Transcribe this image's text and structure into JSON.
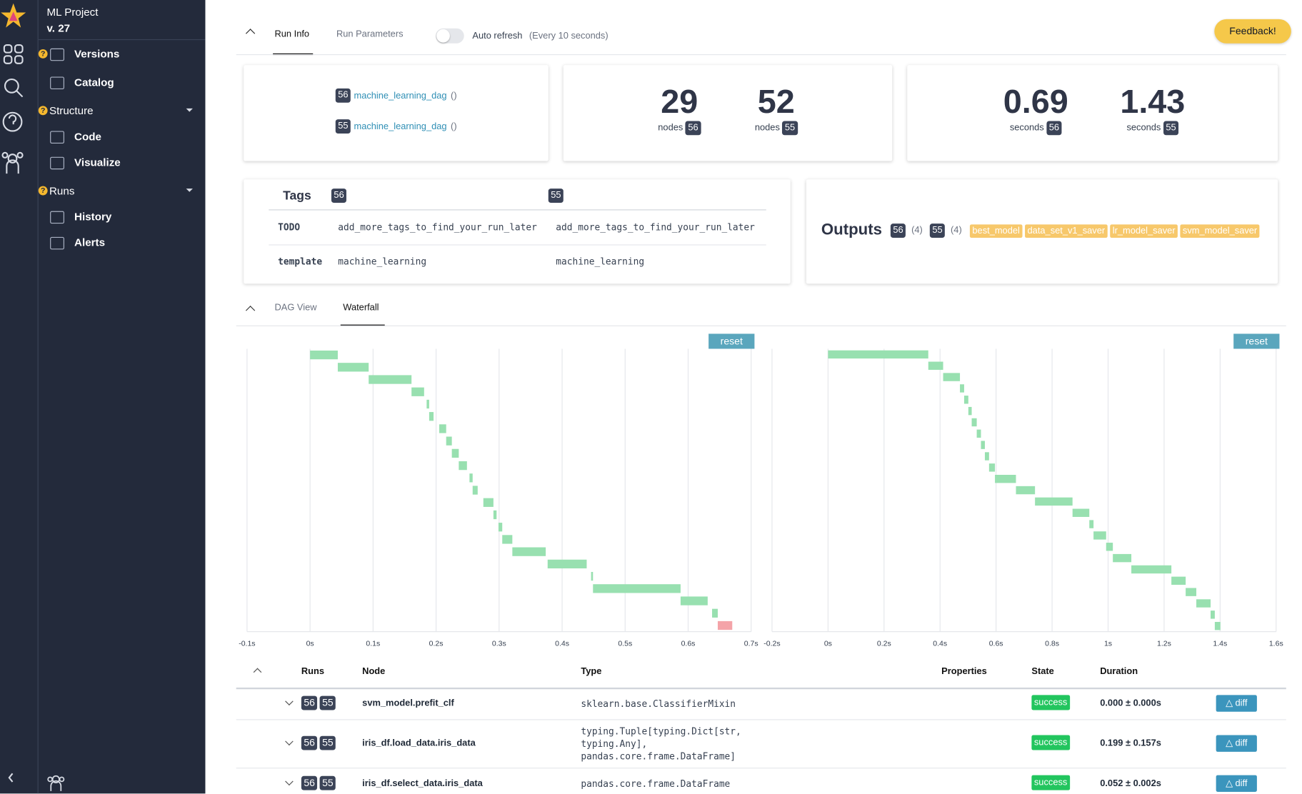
{
  "sidebar": {
    "project": "ML Project",
    "version": "v. 27",
    "items": [
      {
        "label": "Versions",
        "help": true
      },
      {
        "label": "Catalog"
      },
      {
        "label": "Structure",
        "section": true,
        "help": true
      },
      {
        "label": "Code"
      },
      {
        "label": "Visualize"
      },
      {
        "label": "Runs",
        "section": true,
        "help": true
      },
      {
        "label": "History"
      },
      {
        "label": "Alerts"
      }
    ]
  },
  "header": {
    "tabs": [
      "Run Info",
      "Run Parameters"
    ],
    "active_tab": 0,
    "auto_refresh": "Auto refresh",
    "auto_refresh_note": "(Every 10 seconds)",
    "feedback": "Feedback!"
  },
  "runs": [
    {
      "id": "56",
      "dag": "machine_learning_dag",
      "args": "()"
    },
    {
      "id": "55",
      "dag": "machine_learning_dag",
      "args": "()"
    }
  ],
  "stats": [
    {
      "label": "nodes",
      "values": [
        {
          "run": "56",
          "value": 29
        },
        {
          "run": "55",
          "value": 52
        }
      ]
    },
    {
      "label": "seconds",
      "values": [
        {
          "run": "56",
          "value": 0.69
        },
        {
          "run": "55",
          "value": 1.43
        }
      ]
    }
  ],
  "tags": {
    "title": "Tags",
    "runs": [
      "56",
      "55"
    ],
    "rows": [
      {
        "key": "TODO",
        "values": [
          "add_more_tags_to_find_your_run_later",
          "add_more_tags_to_find_your_run_later"
        ]
      },
      {
        "key": "template",
        "values": [
          "machine_learning",
          "machine_learning"
        ]
      }
    ]
  },
  "outputs": {
    "title": "Outputs",
    "runs": [
      {
        "id": "56",
        "count": "(4)"
      },
      {
        "id": "55",
        "count": "(4)"
      }
    ],
    "items": [
      "best_model",
      "data_set_v1_saver",
      "lr_model_saver",
      "svm_model_saver"
    ]
  },
  "view_tabs": {
    "tabs": [
      "DAG View",
      "Waterfall"
    ],
    "active_tab": 1
  },
  "waterfall_charts": [
    {
      "type": "waterfall",
      "reset": "reset",
      "bar_color": "#98e0b0",
      "xlim": [
        -0.1,
        0.7
      ],
      "xticks": [
        {
          "value": -0.1,
          "label": "-0.1s"
        },
        {
          "value": 0,
          "label": "0s"
        },
        {
          "value": 0.1,
          "label": "0.1s"
        },
        {
          "value": 0.2,
          "label": "0.2s"
        },
        {
          "value": 0.3,
          "label": "0.3s"
        },
        {
          "value": 0.4,
          "label": "0.4s"
        },
        {
          "value": 0.5,
          "label": "0.5s"
        },
        {
          "value": 0.6,
          "label": "0.6s"
        },
        {
          "value": 0.7,
          "label": "0.7s"
        }
      ],
      "bars": [
        {
          "start": 0,
          "end": 0.044
        },
        {
          "start": 0.044,
          "end": 0.093
        },
        {
          "start": 0.093,
          "end": 0.161
        },
        {
          "start": 0.161,
          "end": 0.181
        },
        {
          "start": 0.185,
          "end": 0.189
        },
        {
          "start": 0.189,
          "end": 0.196
        },
        {
          "start": 0.205,
          "end": 0.216
        },
        {
          "start": 0.216,
          "end": 0.225
        },
        {
          "start": 0.225,
          "end": 0.236
        },
        {
          "start": 0.236,
          "end": 0.249
        },
        {
          "start": 0.253,
          "end": 0.258
        },
        {
          "start": 0.258,
          "end": 0.266
        },
        {
          "start": 0.275,
          "end": 0.291
        },
        {
          "start": 0.291,
          "end": 0.296
        },
        {
          "start": 0.299,
          "end": 0.305
        },
        {
          "start": 0.305,
          "end": 0.321
        },
        {
          "start": 0.321,
          "end": 0.374
        },
        {
          "start": 0.377,
          "end": 0.439
        },
        {
          "start": 0.446,
          "end": 0.449
        },
        {
          "start": 0.449,
          "end": 0.588
        },
        {
          "start": 0.588,
          "end": 0.631
        },
        {
          "start": 0.638,
          "end": 0.647
        },
        {
          "start": 0.647,
          "end": 0.67,
          "color": "#f4a3a8"
        }
      ]
    },
    {
      "type": "waterfall",
      "reset": "reset",
      "bar_color": "#98e0b0",
      "xlim": [
        -0.2,
        1.6
      ],
      "xticks": [
        {
          "value": -0.2,
          "label": "-0.2s"
        },
        {
          "value": 0,
          "label": "0s"
        },
        {
          "value": 0.2,
          "label": "0.2s"
        },
        {
          "value": 0.4,
          "label": "0.4s"
        },
        {
          "value": 0.6,
          "label": "0.6s"
        },
        {
          "value": 0.8,
          "label": "0.8s"
        },
        {
          "value": 1,
          "label": "1s"
        },
        {
          "value": 1.2,
          "label": "1.2s"
        },
        {
          "value": 1.4,
          "label": "1.4s"
        },
        {
          "value": 1.6,
          "label": "1.6s"
        }
      ],
      "bars": [
        {
          "start": 0,
          "end": 0.358
        },
        {
          "start": 0.358,
          "end": 0.411
        },
        {
          "start": 0.411,
          "end": 0.471
        },
        {
          "start": 0.471,
          "end": 0.486
        },
        {
          "start": 0.486,
          "end": 0.501
        },
        {
          "start": 0.501,
          "end": 0.513
        },
        {
          "start": 0.513,
          "end": 0.531
        },
        {
          "start": 0.531,
          "end": 0.546
        },
        {
          "start": 0.546,
          "end": 0.56
        },
        {
          "start": 0.56,
          "end": 0.575
        },
        {
          "start": 0.575,
          "end": 0.596
        },
        {
          "start": 0.596,
          "end": 0.671
        },
        {
          "start": 0.671,
          "end": 0.739
        },
        {
          "start": 0.739,
          "end": 0.873
        },
        {
          "start": 0.873,
          "end": 0.933
        },
        {
          "start": 0.933,
          "end": 0.948
        },
        {
          "start": 0.948,
          "end": 0.993
        },
        {
          "start": 0.993,
          "end": 1.017
        },
        {
          "start": 1.017,
          "end": 1.083
        },
        {
          "start": 1.083,
          "end": 1.226
        },
        {
          "start": 1.226,
          "end": 1.277
        },
        {
          "start": 1.277,
          "end": 1.315
        },
        {
          "start": 1.315,
          "end": 1.366
        },
        {
          "start": 1.366,
          "end": 1.381
        },
        {
          "start": 1.381,
          "end": 1.401
        }
      ]
    }
  ],
  "node_table": {
    "headers": [
      "Runs",
      "Node",
      "Type",
      "Properties",
      "State",
      "Duration"
    ],
    "diff": "△ diff",
    "rows": [
      {
        "runs": [
          "56",
          "55"
        ],
        "node": "svm_model.prefit_clf",
        "type": [
          "sklearn.base.ClassifierMixin"
        ],
        "state": "success",
        "duration": "0.000 ± 0.000s"
      },
      {
        "runs": [
          "56",
          "55"
        ],
        "node": "iris_df.load_data.iris_data",
        "type": [
          "typing.Tuple[typing.Dict[str,",
          "typing.Any],",
          "pandas.core.frame.DataFrame]"
        ],
        "state": "success",
        "duration": "0.199 ± 0.157s"
      },
      {
        "runs": [
          "56",
          "55"
        ],
        "node": "iris_df.select_data.iris_data",
        "type": [
          "pandas.core.frame.DataFrame"
        ],
        "state": "success",
        "duration": "0.052 ± 0.002s"
      }
    ]
  }
}
